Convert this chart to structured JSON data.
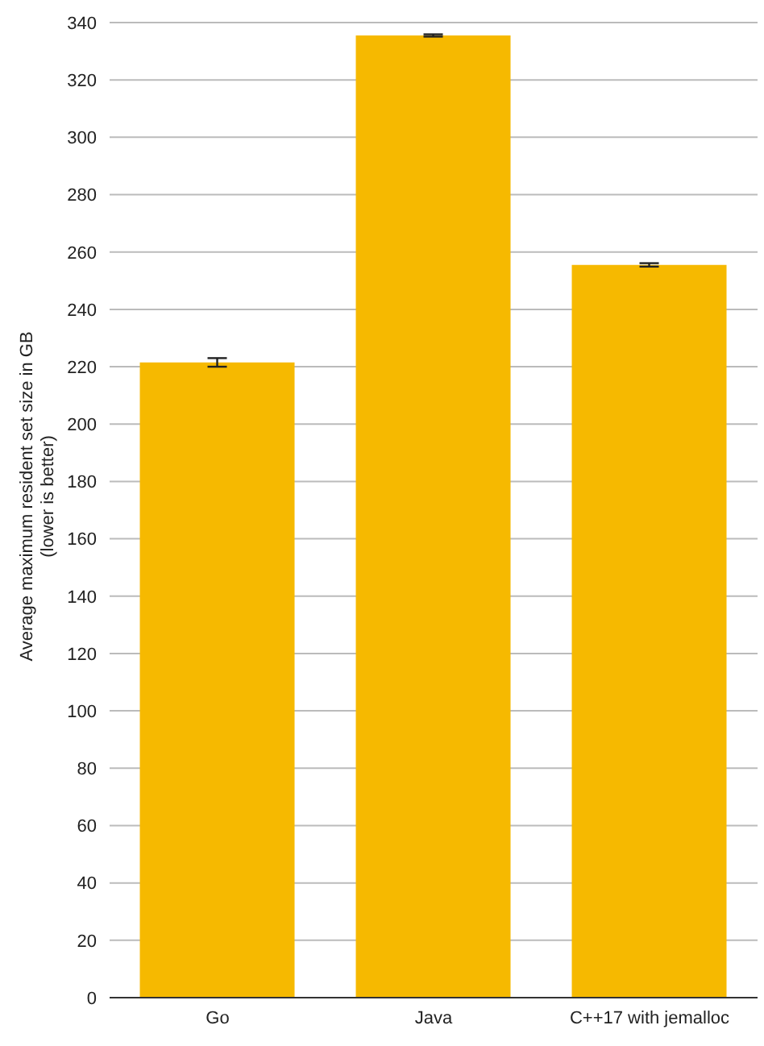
{
  "chart_data": {
    "type": "bar",
    "ylabel": "Average maximum resident set size in GB\n(lower is better)",
    "categories": [
      "Go",
      "Java",
      "C++17 with jemalloc"
    ],
    "values": [
      221.5,
      335.5,
      255.5
    ],
    "errors": [
      1.5,
      0.4,
      0.6
    ],
    "color": "#f6b900",
    "ylim": [
      0,
      340
    ],
    "yticks": [
      0,
      20,
      40,
      60,
      80,
      100,
      120,
      140,
      160,
      180,
      200,
      220,
      240,
      260,
      280,
      300,
      320,
      340
    ],
    "grid": "y"
  }
}
